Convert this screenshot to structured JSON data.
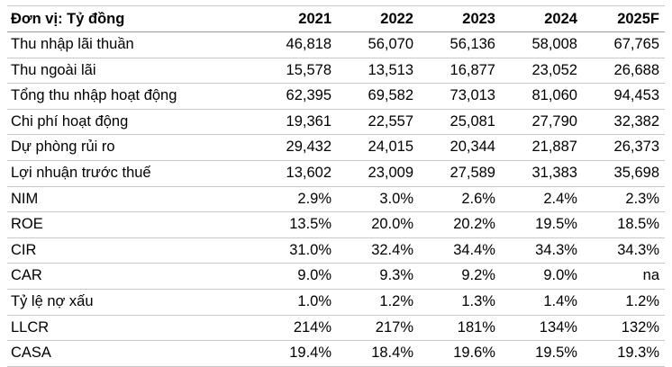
{
  "table": {
    "unit_label": "Đơn vị: Tỷ đồng",
    "years": [
      "2021",
      "2022",
      "2023",
      "2024",
      "2025F"
    ],
    "rows": [
      {
        "label": "Thu nhập lãi thuần",
        "values": [
          "46,818",
          "56,070",
          "56,136",
          "58,008",
          "67,765"
        ]
      },
      {
        "label": "Thu ngoài lãi",
        "values": [
          "15,578",
          "13,513",
          "16,877",
          "23,052",
          "26,688"
        ]
      },
      {
        "label": "Tổng thu nhập hoạt động",
        "values": [
          "62,395",
          "69,582",
          "73,013",
          "81,060",
          "94,453"
        ]
      },
      {
        "label": "Chi phí hoạt động",
        "values": [
          "19,361",
          "22,557",
          "25,081",
          "27,790",
          "32,382"
        ]
      },
      {
        "label": "Dự phòng rủi ro",
        "values": [
          "29,432",
          "24,015",
          "20,344",
          "21,887",
          "26,373"
        ]
      },
      {
        "label": "Lợi nhuận trước thuế",
        "values": [
          "13,602",
          "23,009",
          "27,589",
          "31,383",
          "35,698"
        ]
      },
      {
        "label": "NIM",
        "values": [
          "2.9%",
          "3.0%",
          "2.6%",
          "2.4%",
          "2.3%"
        ]
      },
      {
        "label": "ROE",
        "values": [
          "13.5%",
          "20.0%",
          "20.2%",
          "19.5%",
          "18.5%"
        ]
      },
      {
        "label": "CIR",
        "values": [
          "31.0%",
          "32.4%",
          "34.4%",
          "34.3%",
          "34.3%"
        ]
      },
      {
        "label": "CAR",
        "values": [
          "9.0%",
          "9.3%",
          "9.2%",
          "9.0%",
          "na"
        ]
      },
      {
        "label": "Tỷ lệ nợ xấu",
        "values": [
          "1.0%",
          "1.2%",
          "1.3%",
          "1.4%",
          "1.2%"
        ]
      },
      {
        "label": "LLCR",
        "values": [
          "214%",
          "217%",
          "181%",
          "134%",
          "132%"
        ]
      },
      {
        "label": "CASA",
        "values": [
          "19.4%",
          "18.4%",
          "19.6%",
          "19.5%",
          "19.3%"
        ]
      }
    ]
  }
}
